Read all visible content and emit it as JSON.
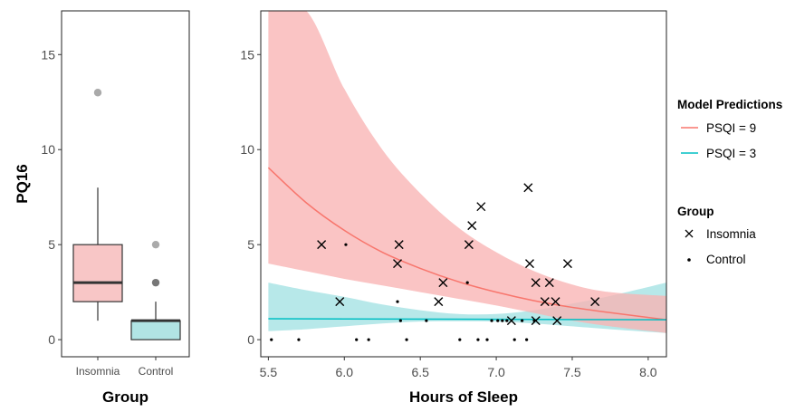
{
  "chart_data": [
    {
      "type": "box",
      "ylabel": "PQ16",
      "xlabel": "Group",
      "ylim": [
        -0.9,
        17.3
      ],
      "yticks": [
        0,
        5,
        10,
        15
      ],
      "categories": [
        "Insomnia",
        "Control"
      ],
      "boxes": [
        {
          "name": "Insomnia",
          "whisker_low": 1,
          "q1": 2,
          "median": 3,
          "q3": 5,
          "whisker_high": 8,
          "outliers": [
            13
          ],
          "fill": "#f8c6c6"
        },
        {
          "name": "Control",
          "whisker_low": 0,
          "q1": 0,
          "median": 1,
          "q3": 1,
          "whisker_high": 2,
          "outliers": [
            3,
            5
          ],
          "fill": "#b1e4e4"
        }
      ],
      "grid": false
    },
    {
      "type": "scatter",
      "xlabel": "Hours of Sleep",
      "xlim": [
        5.45,
        8.12
      ],
      "ylim": [
        -0.9,
        17.3
      ],
      "xticks": [
        5.5,
        6.0,
        6.5,
        7.0,
        7.5,
        8.0
      ],
      "xtick_labels": [
        "5.5",
        "6.0",
        "6.5",
        "7.0",
        "7.5",
        "8.0"
      ],
      "yticks": [
        0,
        5,
        10,
        15
      ],
      "grid": false,
      "series": [
        {
          "name": "Insomnia",
          "marker": "x",
          "color": "#000000",
          "points": [
            [
              5.85,
              5
            ],
            [
              5.97,
              2
            ],
            [
              6.35,
              4
            ],
            [
              6.36,
              5
            ],
            [
              6.62,
              2
            ],
            [
              6.65,
              3
            ],
            [
              6.82,
              5
            ],
            [
              6.84,
              6
            ],
            [
              6.9,
              7
            ],
            [
              7.1,
              1
            ],
            [
              7.21,
              8
            ],
            [
              7.22,
              4
            ],
            [
              7.26,
              3
            ],
            [
              7.26,
              1
            ],
            [
              7.32,
              2
            ],
            [
              7.35,
              3
            ],
            [
              7.39,
              2
            ],
            [
              7.4,
              1
            ],
            [
              7.47,
              4
            ],
            [
              7.65,
              2
            ]
          ]
        },
        {
          "name": "Control",
          "marker": "dot",
          "color": "#000000",
          "points": [
            [
              5.52,
              0
            ],
            [
              5.7,
              0
            ],
            [
              6.01,
              5
            ],
            [
              6.08,
              0
            ],
            [
              6.16,
              0
            ],
            [
              6.35,
              2
            ],
            [
              6.37,
              1
            ],
            [
              6.41,
              0
            ],
            [
              6.54,
              1
            ],
            [
              6.76,
              0
            ],
            [
              6.81,
              3
            ],
            [
              6.88,
              0
            ],
            [
              6.94,
              0
            ],
            [
              6.97,
              1
            ],
            [
              7.01,
              1
            ],
            [
              7.04,
              1
            ],
            [
              7.07,
              1
            ],
            [
              7.12,
              0
            ],
            [
              7.17,
              1
            ],
            [
              7.2,
              0
            ],
            [
              7.25,
              1
            ]
          ]
        }
      ],
      "model_predictions": [
        {
          "name": "PSQI = 9",
          "color": "#f8766d",
          "band_color": "#f8b4b4",
          "line": [
            [
              5.5,
              9.05
            ],
            [
              5.75,
              7.2
            ],
            [
              6.0,
              5.75
            ],
            [
              6.25,
              4.6
            ],
            [
              6.5,
              3.75
            ],
            [
              6.75,
              3.05
            ],
            [
              7.0,
              2.5
            ],
            [
              7.25,
              2.05
            ],
            [
              7.5,
              1.7
            ],
            [
              7.75,
              1.42
            ],
            [
              8.12,
              1.05
            ]
          ],
          "lower": [
            [
              5.5,
              4.0
            ],
            [
              5.75,
              3.6
            ],
            [
              6.0,
              3.2
            ],
            [
              6.25,
              2.85
            ],
            [
              6.5,
              2.5
            ],
            [
              6.75,
              2.15
            ],
            [
              7.0,
              1.8
            ],
            [
              7.25,
              1.4
            ],
            [
              7.5,
              1.0
            ],
            [
              7.75,
              0.7
            ],
            [
              8.12,
              0.35
            ]
          ],
          "upper": [
            [
              5.5,
              17.3
            ],
            [
              5.75,
              17.3
            ],
            [
              6.0,
              13.2
            ],
            [
              6.25,
              10.0
            ],
            [
              6.5,
              7.7
            ],
            [
              6.75,
              5.9
            ],
            [
              7.0,
              4.6
            ],
            [
              7.25,
              3.6
            ],
            [
              7.5,
              2.9
            ],
            [
              7.75,
              2.5
            ],
            [
              8.12,
              2.3
            ]
          ]
        },
        {
          "name": "PSQI = 3",
          "color": "#00bfc4",
          "band_color": "#a3e2e3",
          "line": [
            [
              5.5,
              1.1
            ],
            [
              8.12,
              1.05
            ]
          ],
          "lower": [
            [
              5.5,
              0.45
            ],
            [
              5.75,
              0.55
            ],
            [
              6.0,
              0.7
            ],
            [
              6.25,
              0.85
            ],
            [
              6.5,
              0.95
            ],
            [
              6.75,
              0.97
            ],
            [
              7.0,
              0.95
            ],
            [
              7.25,
              0.85
            ],
            [
              7.5,
              0.7
            ],
            [
              7.75,
              0.55
            ],
            [
              8.12,
              0.35
            ]
          ],
          "upper": [
            [
              5.5,
              3.0
            ],
            [
              5.75,
              2.6
            ],
            [
              6.0,
              2.25
            ],
            [
              6.25,
              1.85
            ],
            [
              6.5,
              1.55
            ],
            [
              6.75,
              1.35
            ],
            [
              7.0,
              1.35
            ],
            [
              7.25,
              1.55
            ],
            [
              7.5,
              1.9
            ],
            [
              7.75,
              2.3
            ],
            [
              8.12,
              3.0
            ]
          ]
        }
      ]
    }
  ],
  "legend": {
    "model_title": "Model Predictions",
    "model_items": [
      {
        "label": "PSQI = 9",
        "color": "#f8766d"
      },
      {
        "label": "PSQI = 3",
        "color": "#00bfc4"
      }
    ],
    "group_title": "Group",
    "group_items": [
      {
        "label": "Insomnia",
        "marker": "x"
      },
      {
        "label": "Control",
        "marker": "dot"
      }
    ]
  }
}
